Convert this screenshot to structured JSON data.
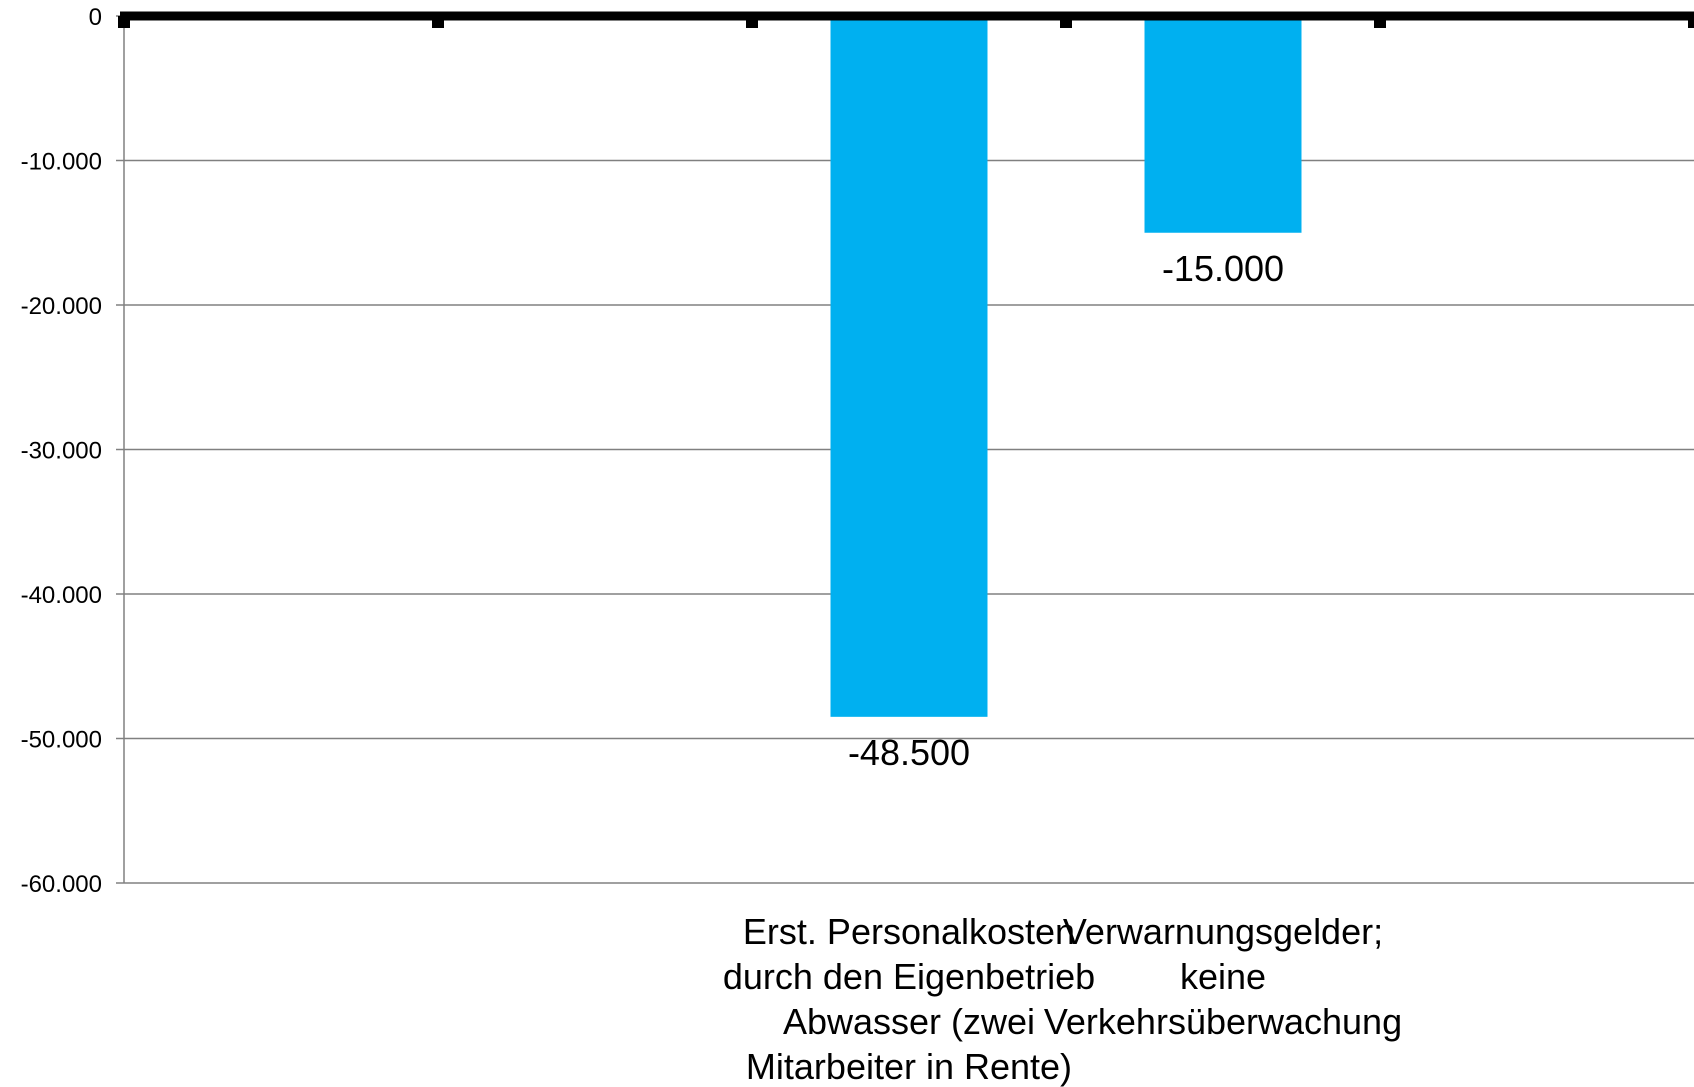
{
  "chart_data": {
    "type": "bar",
    "categories": [
      "",
      "",
      "Erst. Personalkosten durch den Eigenbetrieb Abwasser (zwei Mitarbeiter in Rente)",
      "Verwarnungsgelder; keine Verkehrsüberwachung",
      ""
    ],
    "category_lines": [
      [],
      [],
      [
        "Erst. Personalkosten",
        "durch den Eigenbetrieb",
        "Abwasser (zwei",
        "Mitarbeiter in Rente)"
      ],
      [
        "Verwarnungsgelder;",
        "keine",
        "Verkehrsüberwachung"
      ],
      []
    ],
    "values": [
      null,
      null,
      -48500,
      -15000,
      null
    ],
    "data_labels": [
      "",
      "",
      "-48.500",
      "-15.000",
      ""
    ],
    "ylim": [
      -60000,
      0
    ],
    "yticks": [
      0,
      -10000,
      -20000,
      -30000,
      -40000,
      -50000,
      -60000
    ],
    "ytick_labels": [
      "0",
      "-10.000",
      "-20.000",
      "-30.000",
      "-40.000",
      "-50.000",
      "-60.000"
    ],
    "grid": true,
    "legend": "none",
    "title": "",
    "xlabel": "",
    "ylabel": "",
    "colors": {
      "bar": "#00b0f0",
      "grid": "#808080",
      "zero_line": "#000000"
    }
  }
}
